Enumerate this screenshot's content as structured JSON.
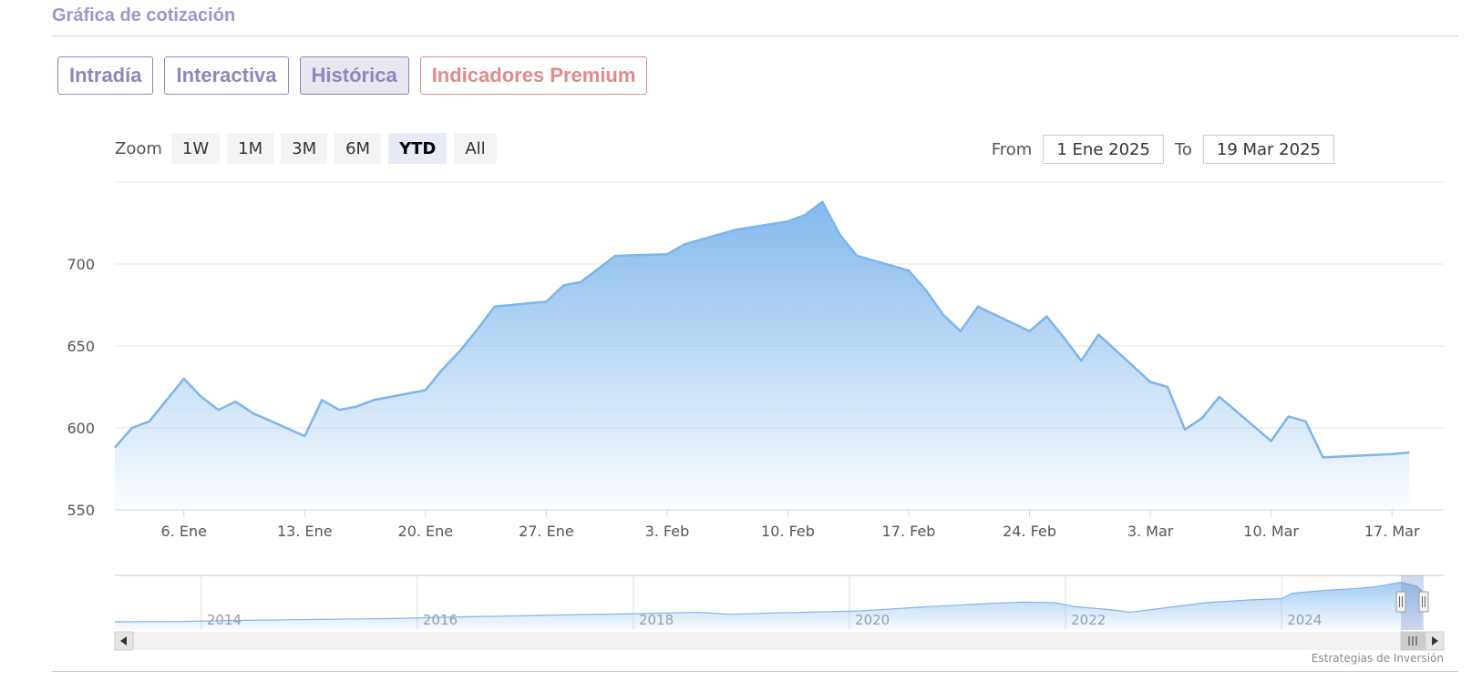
{
  "header": {
    "title": "Gráfica de cotización"
  },
  "tabs": [
    {
      "label": "Intradía",
      "state": "normal"
    },
    {
      "label": "Interactiva",
      "state": "normal"
    },
    {
      "label": "Histórica",
      "state": "active"
    },
    {
      "label": "Indicadores Premium",
      "state": "premium"
    }
  ],
  "zoom": {
    "label": "Zoom",
    "buttons": [
      "1W",
      "1M",
      "3M",
      "6M",
      "YTD",
      "All"
    ],
    "selected": "YTD"
  },
  "range": {
    "from_label": "From",
    "from_value": "1 Ene 2025",
    "to_label": "To",
    "to_value": "19 Mar 2025"
  },
  "colors": {
    "series": "#7cb5ec",
    "accent": "#8f86bd",
    "premium": "#e08a8a"
  },
  "chart_data": {
    "type": "area",
    "title": "",
    "ylim": [
      550,
      750
    ],
    "yticks": [
      550,
      600,
      650,
      700
    ],
    "xticks": [
      {
        "label": "6. Ene",
        "day": 6
      },
      {
        "label": "13. Ene",
        "day": 13
      },
      {
        "label": "20. Ene",
        "day": 20
      },
      {
        "label": "27. Ene",
        "day": 27
      },
      {
        "label": "3. Feb",
        "day": 34
      },
      {
        "label": "10. Feb",
        "day": 41
      },
      {
        "label": "17. Feb",
        "day": 48
      },
      {
        "label": "24. Feb",
        "day": 55
      },
      {
        "label": "3. Mar",
        "day": 62
      },
      {
        "label": "10. Mar",
        "day": 69
      },
      {
        "label": "17. Mar",
        "day": 76
      }
    ],
    "xrange": [
      2,
      79
    ],
    "series": [
      {
        "points": [
          [
            2,
            588
          ],
          [
            3,
            600
          ],
          [
            4,
            604
          ],
          [
            6,
            630
          ],
          [
            7,
            619
          ],
          [
            8,
            611
          ],
          [
            9,
            616
          ],
          [
            10,
            609
          ],
          [
            13,
            595
          ],
          [
            14,
            617
          ],
          [
            15,
            611
          ],
          [
            16,
            613
          ],
          [
            17,
            617
          ],
          [
            20,
            623
          ],
          [
            21,
            636
          ],
          [
            22,
            647
          ],
          [
            23,
            660
          ],
          [
            24,
            674
          ],
          [
            27,
            677
          ],
          [
            28,
            687
          ],
          [
            29,
            689
          ],
          [
            30,
            697
          ],
          [
            31,
            705
          ],
          [
            34,
            706
          ],
          [
            35,
            712
          ],
          [
            36,
            715
          ],
          [
            37,
            718
          ],
          [
            38,
            721
          ],
          [
            41,
            726
          ],
          [
            42,
            730
          ],
          [
            43,
            738
          ],
          [
            44,
            718
          ],
          [
            45,
            705
          ],
          [
            48,
            696
          ],
          [
            49,
            684
          ],
          [
            50,
            669
          ],
          [
            51,
            659
          ],
          [
            52,
            674
          ],
          [
            55,
            659
          ],
          [
            56,
            668
          ],
          [
            57,
            655
          ],
          [
            58,
            641
          ],
          [
            59,
            657
          ],
          [
            62,
            628
          ],
          [
            63,
            625
          ],
          [
            64,
            599
          ],
          [
            65,
            606
          ],
          [
            66,
            619
          ],
          [
            69,
            592
          ],
          [
            70,
            607
          ],
          [
            71,
            604
          ],
          [
            72,
            582
          ],
          [
            76,
            584
          ],
          [
            77,
            585
          ]
        ]
      }
    ]
  },
  "navigator": {
    "labels": [
      "2014",
      "2016",
      "2018",
      "2020",
      "2022",
      "2024"
    ],
    "years": [
      2014,
      2016,
      2018,
      2020,
      2022,
      2024
    ],
    "xrange": [
      2013.2,
      2025.5
    ],
    "series": [
      [
        2013.2,
        360
      ],
      [
        2013.8,
        362
      ],
      [
        2014.3,
        370
      ],
      [
        2014.8,
        375
      ],
      [
        2015.3,
        380
      ],
      [
        2015.8,
        384
      ],
      [
        2016.3,
        395
      ],
      [
        2016.8,
        402
      ],
      [
        2017.3,
        410
      ],
      [
        2017.8,
        416
      ],
      [
        2018.3,
        425
      ],
      [
        2018.6,
        430
      ],
      [
        2018.9,
        415
      ],
      [
        2019.3,
        425
      ],
      [
        2019.7,
        432
      ],
      [
        2020.1,
        440
      ],
      [
        2020.4,
        455
      ],
      [
        2020.7,
        470
      ],
      [
        2021.0,
        482
      ],
      [
        2021.3,
        495
      ],
      [
        2021.6,
        505
      ],
      [
        2021.9,
        500
      ],
      [
        2022.1,
        470
      ],
      [
        2022.4,
        450
      ],
      [
        2022.6,
        430
      ],
      [
        2022.9,
        460
      ],
      [
        2023.3,
        500
      ],
      [
        2023.7,
        520
      ],
      [
        2024.0,
        530
      ],
      [
        2024.1,
        570
      ],
      [
        2024.4,
        590
      ],
      [
        2024.7,
        605
      ],
      [
        2024.9,
        620
      ],
      [
        2025.1,
        650
      ],
      [
        2025.25,
        620
      ],
      [
        2025.3,
        585
      ]
    ],
    "ylim": [
      300,
      700
    ]
  },
  "credits": "Estrategias de Inversión"
}
